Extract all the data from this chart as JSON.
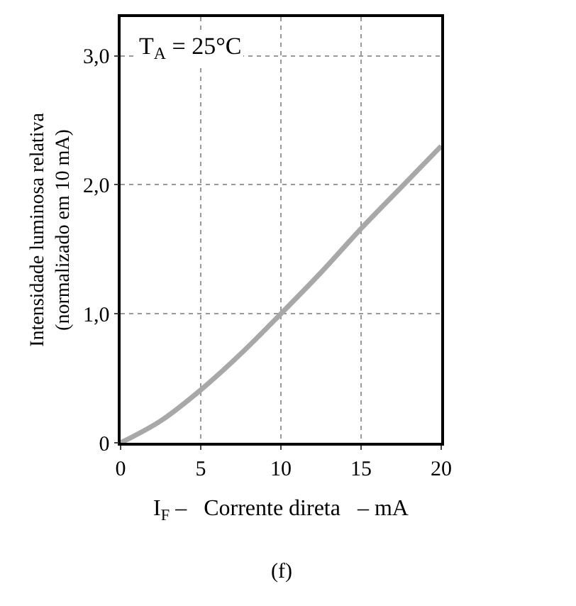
{
  "chart_data": {
    "type": "line",
    "x": [
      0,
      2.5,
      5,
      7.5,
      10,
      12.5,
      15,
      17.5,
      20
    ],
    "series": [
      {
        "color": "#a8a8a8",
        "values": [
          0,
          0.17,
          0.41,
          0.69,
          1.0,
          1.32,
          1.66,
          1.98,
          2.3
        ]
      }
    ],
    "xlim": [
      0,
      20
    ],
    "xticks": [
      0,
      5,
      10,
      15,
      20
    ],
    "ylim": [
      0,
      3.3
    ],
    "yticks": [
      0,
      {
        "value": 1,
        "label": "1,0"
      },
      {
        "value": 2,
        "label": "2,0"
      },
      {
        "value": 3,
        "label": "3,0"
      }
    ],
    "xlabel": "I$_{F}$ –   Corrente direta   – mA",
    "ylabel": "Intensidade luminosa relativa\n(normalizado em 10 mA)",
    "annotations": [
      "T$_{A}$ = 25°C",
      "(f)"
    ],
    "grid": true,
    "legend": false,
    "marker": "none",
    "line_style": "solid"
  }
}
